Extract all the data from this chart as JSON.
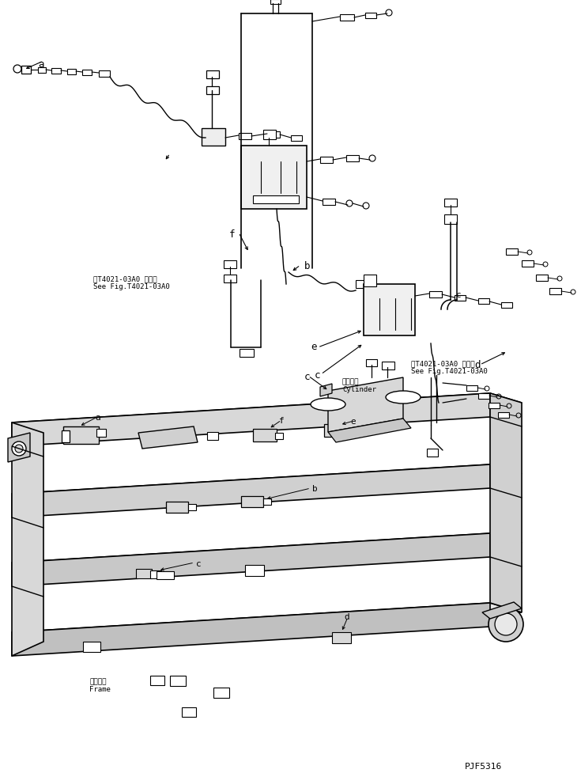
{
  "bg_color": "#ffffff",
  "line_color": "#000000",
  "fig_width": 7.35,
  "fig_height": 9.78,
  "dpi": 100,
  "part_code": "PJF5316",
  "ref_text1": "第T4021-03A0 図参照\nSee Fig.T4021-03A0",
  "ref_text2": "第T4021-03A0 図参照\nSee Fig.T4021-03A0",
  "cylinder_text": "シリンダ\nCylinder",
  "frame_text": "フレーム\nFrame"
}
